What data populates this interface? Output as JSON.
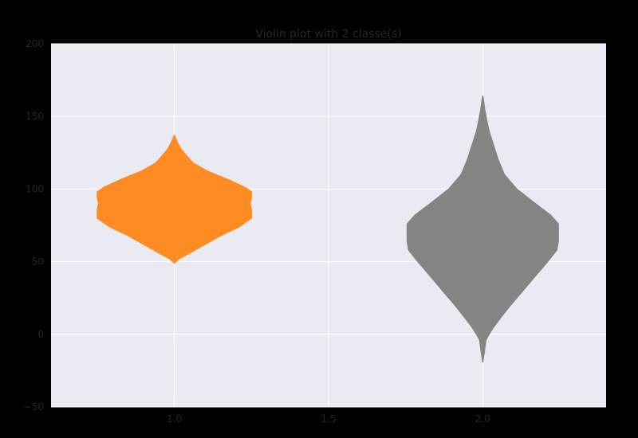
{
  "chart_data": {
    "type": "violin",
    "title": "Violin plot with 2 classe(s)",
    "xlabel": "",
    "ylabel": "",
    "xlim": [
      0.6,
      2.4
    ],
    "ylim": [
      -50,
      200
    ],
    "x_ticks": [
      1.0,
      1.5,
      2.0
    ],
    "x_tick_labels": [
      "1.0",
      "1.5",
      "2.0"
    ],
    "y_ticks": [
      -50,
      0,
      50,
      100,
      150,
      200
    ],
    "y_tick_labels": [
      "−50",
      "0",
      "50",
      "100",
      "150",
      "200"
    ],
    "grid": true,
    "colors": {
      "background": "#000000",
      "plot_area": "#eaeaf2",
      "grid": "#ffffff",
      "text": "#262626"
    },
    "series": [
      {
        "position": 1.0,
        "color": "#ff8c22",
        "min": 49,
        "max": 137,
        "profile": [
          [
            49,
            0.0
          ],
          [
            52,
            0.015
          ],
          [
            56,
            0.05
          ],
          [
            62,
            0.1
          ],
          [
            68,
            0.15
          ],
          [
            74,
            0.21
          ],
          [
            80,
            0.25
          ],
          [
            86,
            0.25
          ],
          [
            90,
            0.245
          ],
          [
            94,
            0.25
          ],
          [
            98,
            0.25
          ],
          [
            101,
            0.23
          ],
          [
            106,
            0.18
          ],
          [
            112,
            0.11
          ],
          [
            118,
            0.06
          ],
          [
            124,
            0.035
          ],
          [
            128,
            0.02
          ],
          [
            132,
            0.01
          ],
          [
            137,
            0.0
          ]
        ]
      },
      {
        "position": 2.0,
        "color": "#848484",
        "min": -19,
        "max": 164,
        "profile": [
          [
            -19,
            0.0
          ],
          [
            -12,
            0.005
          ],
          [
            -4,
            0.01
          ],
          [
            0,
            0.02
          ],
          [
            5,
            0.035
          ],
          [
            12,
            0.06
          ],
          [
            20,
            0.09
          ],
          [
            30,
            0.13
          ],
          [
            40,
            0.17
          ],
          [
            50,
            0.21
          ],
          [
            58,
            0.24
          ],
          [
            64,
            0.245
          ],
          [
            70,
            0.245
          ],
          [
            76,
            0.245
          ],
          [
            82,
            0.22
          ],
          [
            90,
            0.17
          ],
          [
            100,
            0.11
          ],
          [
            110,
            0.07
          ],
          [
            120,
            0.05
          ],
          [
            130,
            0.035
          ],
          [
            140,
            0.02
          ],
          [
            148,
            0.012
          ],
          [
            155,
            0.006
          ],
          [
            160,
            0.003
          ],
          [
            164,
            0.0
          ]
        ]
      }
    ]
  }
}
